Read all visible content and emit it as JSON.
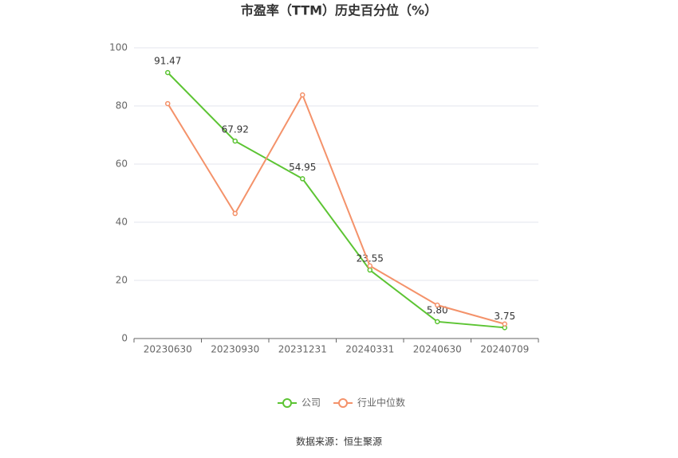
{
  "chart_data": {
    "type": "line",
    "title": "市盈率（TTM）历史百分位（%）",
    "categories": [
      "20230630",
      "20230930",
      "20231231",
      "20240331",
      "20240630",
      "20240709"
    ],
    "series": [
      {
        "name": "公司",
        "color": "#5cc433",
        "values": [
          91.47,
          67.92,
          54.95,
          23.55,
          5.8,
          3.75
        ],
        "value_labels": [
          "91.47",
          "67.92",
          "54.95",
          "23.55",
          "5.80",
          "3.75"
        ]
      },
      {
        "name": "行业中位数",
        "color": "#f4926a",
        "values": [
          80.8,
          43,
          83.8,
          25,
          11.5,
          5
        ]
      }
    ],
    "ylim": [
      0,
      100
    ],
    "yticks": [
      0,
      20,
      40,
      60,
      80,
      100
    ],
    "grid": true,
    "legend": "bottom",
    "source": "数据来源：恒生聚源"
  }
}
